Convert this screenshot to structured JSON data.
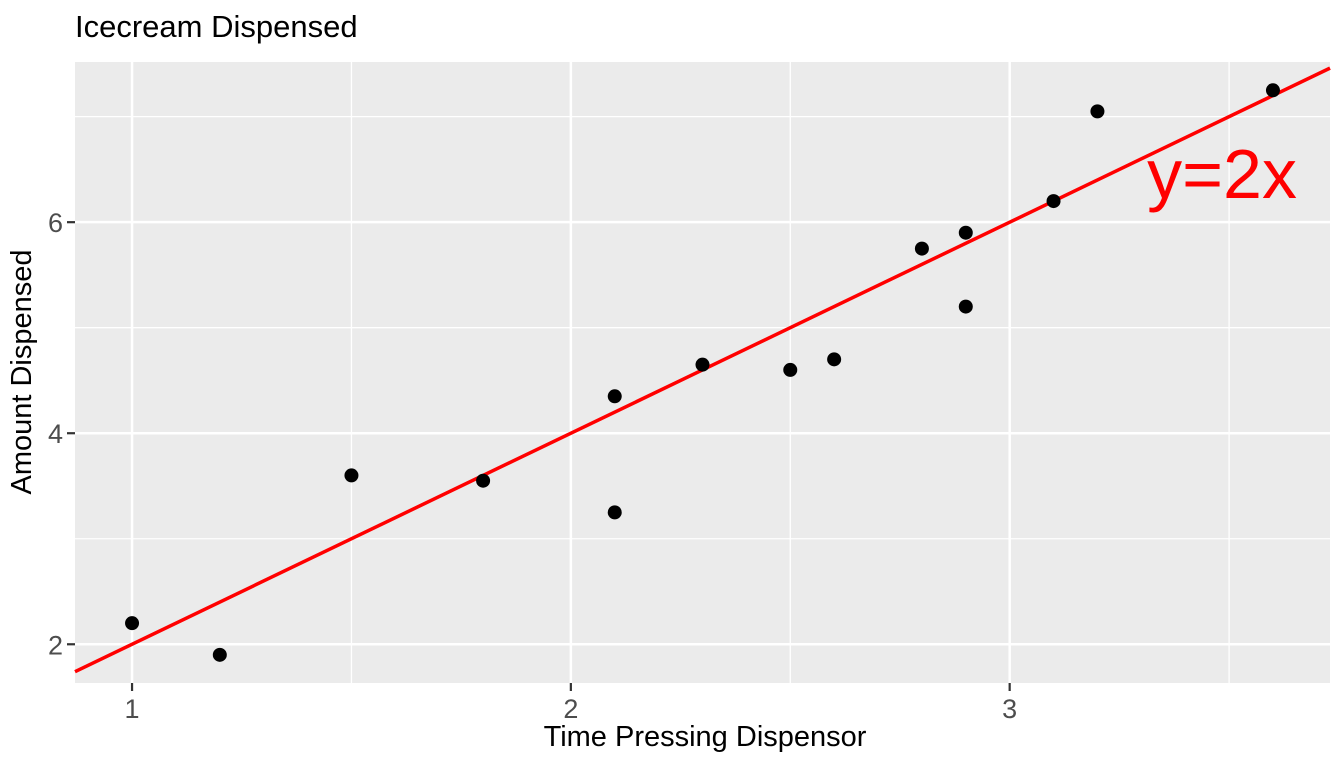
{
  "figure": {
    "title": "Icecream Dispensed"
  },
  "chart_data": {
    "type": "scatter",
    "title": "Icecream Dispensed",
    "xlabel": "Time Pressing Dispensor",
    "ylabel": "Amount Dispensed",
    "points": [
      [
        1.0,
        2.2
      ],
      [
        1.2,
        1.9
      ],
      [
        1.5,
        3.6
      ],
      [
        1.8,
        3.55
      ],
      [
        2.1,
        4.35
      ],
      [
        2.1,
        3.25
      ],
      [
        2.3,
        4.65
      ],
      [
        2.5,
        4.6
      ],
      [
        2.6,
        4.7
      ],
      [
        2.8,
        5.75
      ],
      [
        2.9,
        5.9
      ],
      [
        2.9,
        5.2
      ],
      [
        3.1,
        6.2
      ],
      [
        3.2,
        7.05
      ],
      [
        3.6,
        7.25
      ]
    ],
    "line": {
      "kind": "abline",
      "slope": 2,
      "intercept": 0,
      "label": "y=2x",
      "color": "#ff0000"
    },
    "annotation": {
      "text": "y=2x",
      "x": 3.484,
      "y": 6.23,
      "color": "#ff0000",
      "anchor": "middle"
    },
    "x_ticks": [
      1,
      2,
      3
    ],
    "y_ticks": [
      2,
      4,
      6
    ],
    "x_minor_ticks": [
      1.5,
      2.5,
      3.5
    ],
    "y_minor_ticks": [
      3,
      5,
      7
    ],
    "xlim": [
      0.87,
      3.73
    ],
    "ylim": [
      1.633,
      7.518
    ],
    "grid": true,
    "legend": "none",
    "style": {
      "panel_bg": "#ebebeb",
      "grid_color": "#ffffff",
      "point_color": "#000000",
      "axis_tick_color": "#333333",
      "tick_label_color": "#4d4d4d",
      "title_color": "#000000"
    }
  }
}
